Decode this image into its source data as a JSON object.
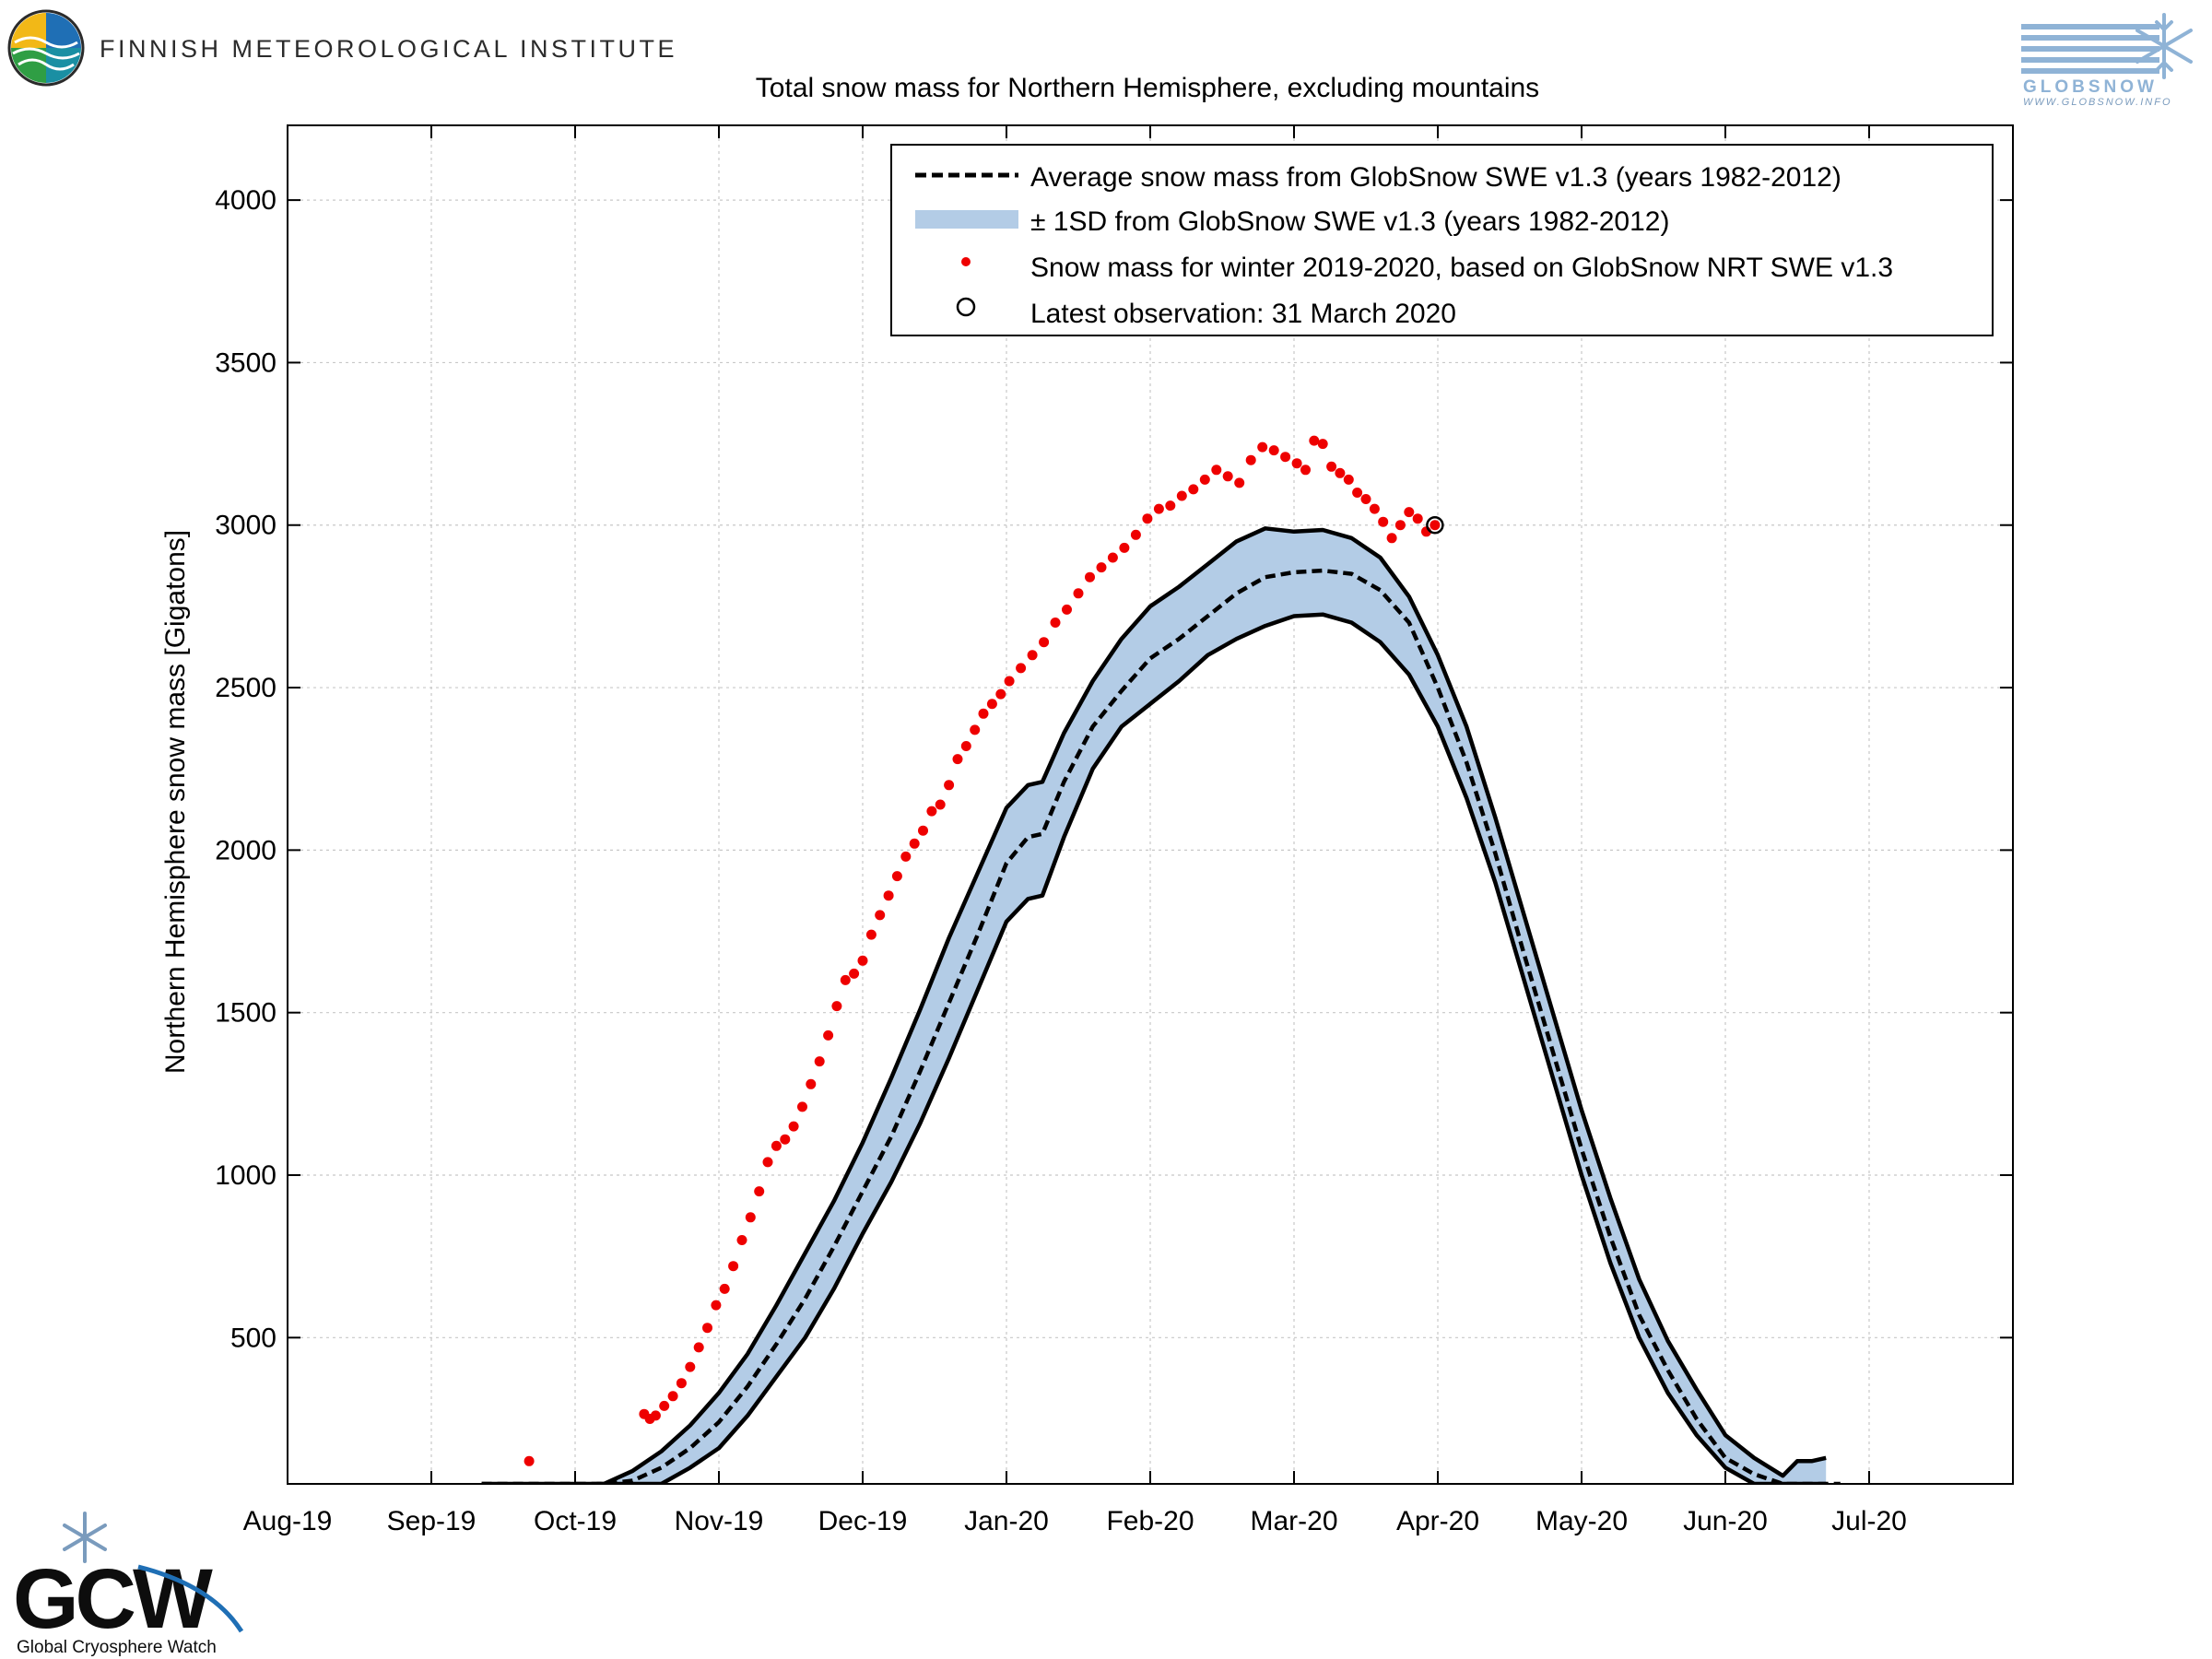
{
  "header": {
    "institute_name": "FINNISH METEOROLOGICAL INSTITUTE",
    "globsnow_wordmark": "GLOBSNOW",
    "globsnow_url": "WWW.GLOBSNOW.INFO",
    "gcw_wordmark": "GCW",
    "gcw_caption": "Global Cryosphere Watch"
  },
  "colors": {
    "band_fill": "#b3cce6",
    "band_edge": "#000000",
    "points": "#ee0000",
    "mean_line": "#000000",
    "fmi_blue": "#1f6fb5",
    "fmi_yellow": "#f2b817",
    "fmi_green": "#2f9e44",
    "globsnow_blue": "#8fb3d6"
  },
  "chart_data": {
    "type": "line",
    "title": "Total snow mass for Northern Hemisphere, excluding mountains",
    "xlabel": "",
    "ylabel": "Northern Hemisphere snow mass [Gigatons]",
    "x_unit": "month (0 = 1 Aug 2019)",
    "xlim": [
      0,
      12
    ],
    "ylim": [
      50,
      4230
    ],
    "x_ticks": [
      {
        "x": 0,
        "label": "Aug-19"
      },
      {
        "x": 1,
        "label": "Sep-19"
      },
      {
        "x": 2,
        "label": "Oct-19"
      },
      {
        "x": 3,
        "label": "Nov-19"
      },
      {
        "x": 4,
        "label": "Dec-19"
      },
      {
        "x": 5,
        "label": "Jan-20"
      },
      {
        "x": 6,
        "label": "Feb-20"
      },
      {
        "x": 7,
        "label": "Mar-20"
      },
      {
        "x": 8,
        "label": "Apr-20"
      },
      {
        "x": 9,
        "label": "May-20"
      },
      {
        "x": 10,
        "label": "Jun-20"
      },
      {
        "x": 11,
        "label": "Jul-20"
      }
    ],
    "y_ticks": [
      500,
      1000,
      1500,
      2000,
      2500,
      3000,
      3500,
      4000
    ],
    "grid": true,
    "legend_position": "top-right",
    "legend": [
      {
        "kind": "dashed-line",
        "label": "Average snow mass from GlobSnow SWE v1.3 (years 1982-2012)"
      },
      {
        "kind": "band",
        "label": "± 1SD from GlobSnow SWE v1.3 (years 1982-2012)"
      },
      {
        "kind": "dot",
        "label": "Snow mass for winter 2019-2020, based on GlobSnow NRT SWE v1.3"
      },
      {
        "kind": "circle",
        "label": "Latest observation: 31 March 2020"
      }
    ],
    "series": [
      {
        "kind": "mean",
        "x": [
          1.35,
          1.6,
          1.8,
          2.0,
          2.2,
          2.4,
          2.6,
          2.8,
          3.0,
          3.2,
          3.4,
          3.6,
          3.8,
          4.0,
          4.2,
          4.4,
          4.6,
          4.8,
          5.0,
          5.15,
          5.25,
          5.4,
          5.6,
          5.8,
          6.0,
          6.2,
          6.4,
          6.6,
          6.8,
          7.0,
          7.2,
          7.4,
          7.6,
          7.8,
          8.0,
          8.2,
          8.4,
          8.6,
          8.8,
          9.0,
          9.2,
          9.4,
          9.6,
          9.8,
          10.0,
          10.2,
          10.4,
          10.6,
          10.7,
          10.8
        ],
        "y": [
          0,
          0,
          0,
          5,
          25,
          60,
          100,
          160,
          240,
          350,
          480,
          620,
          780,
          950,
          1120,
          1320,
          1530,
          1740,
          1960,
          2040,
          2050,
          2210,
          2380,
          2490,
          2590,
          2650,
          2720,
          2790,
          2840,
          2855,
          2860,
          2850,
          2800,
          2700,
          2500,
          2270,
          1990,
          1680,
          1380,
          1080,
          810,
          570,
          400,
          250,
          130,
          80,
          40,
          40,
          25,
          10
        ]
      },
      {
        "kind": "band_upper",
        "x": [
          1.35,
          1.6,
          1.8,
          2.0,
          2.2,
          2.4,
          2.6,
          2.8,
          3.0,
          3.2,
          3.4,
          3.6,
          3.8,
          4.0,
          4.2,
          4.4,
          4.6,
          4.8,
          5.0,
          5.15,
          5.25,
          5.4,
          5.6,
          5.8,
          6.0,
          6.2,
          6.4,
          6.6,
          6.8,
          7.0,
          7.2,
          7.4,
          7.6,
          7.8,
          8.0,
          8.2,
          8.4,
          8.6,
          8.8,
          9.0,
          9.2,
          9.4,
          9.6,
          9.8,
          10.0,
          10.2,
          10.4,
          10.5,
          10.6,
          10.7
        ],
        "y": [
          0,
          5,
          10,
          25,
          50,
          90,
          150,
          230,
          330,
          450,
          600,
          760,
          920,
          1100,
          1300,
          1510,
          1730,
          1930,
          2130,
          2200,
          2210,
          2360,
          2520,
          2650,
          2750,
          2810,
          2880,
          2950,
          2990,
          2980,
          2985,
          2960,
          2900,
          2780,
          2600,
          2380,
          2100,
          1800,
          1500,
          1200,
          930,
          680,
          490,
          340,
          200,
          130,
          75,
          120,
          120,
          130
        ]
      },
      {
        "kind": "band_lower",
        "x": [
          2.15,
          2.4,
          2.6,
          2.8,
          3.0,
          3.2,
          3.4,
          3.6,
          3.8,
          4.0,
          4.2,
          4.4,
          4.6,
          4.8,
          5.0,
          5.15,
          5.25,
          5.4,
          5.6,
          5.8,
          6.0,
          6.2,
          6.4,
          6.6,
          6.8,
          7.0,
          7.2,
          7.4,
          7.6,
          7.8,
          8.0,
          8.2,
          8.4,
          8.6,
          8.8,
          9.0,
          9.2,
          9.4,
          9.6,
          9.8,
          10.0,
          10.2,
          10.4,
          10.6,
          10.7
        ],
        "y": [
          0,
          20,
          50,
          100,
          160,
          260,
          380,
          500,
          650,
          820,
          980,
          1160,
          1360,
          1570,
          1780,
          1850,
          1860,
          2040,
          2250,
          2380,
          2450,
          2520,
          2600,
          2650,
          2690,
          2720,
          2725,
          2700,
          2640,
          2540,
          2380,
          2160,
          1900,
          1600,
          1300,
          1000,
          730,
          500,
          330,
          200,
          100,
          40,
          10,
          0,
          0
        ]
      },
      {
        "kind": "observed",
        "name": "",
        "x": [
          1.4,
          1.68,
          2.48,
          2.52,
          2.56,
          2.62,
          2.68,
          2.74,
          2.8,
          2.86,
          2.92,
          2.98,
          3.04,
          3.1,
          3.16,
          3.22,
          3.28,
          3.34,
          3.4,
          3.46,
          3.52,
          3.58,
          3.64,
          3.7,
          3.76,
          3.82,
          3.88,
          3.94,
          4.0,
          4.06,
          4.12,
          4.18,
          4.24,
          4.3,
          4.36,
          4.42,
          4.48,
          4.54,
          4.6,
          4.66,
          4.72,
          4.78,
          4.84,
          4.9,
          4.96,
          5.02,
          5.1,
          5.18,
          5.26,
          5.34,
          5.42,
          5.5,
          5.58,
          5.66,
          5.74,
          5.82,
          5.9,
          5.98,
          6.06,
          6.14,
          6.22,
          6.3,
          6.38,
          6.46,
          6.54,
          6.62,
          6.7,
          6.78,
          6.86,
          6.94,
          7.02,
          7.08,
          7.14,
          7.2,
          7.26,
          7.32,
          7.38,
          7.44,
          7.5,
          7.56,
          7.62,
          7.68,
          7.74,
          7.8,
          7.86,
          7.92,
          7.98
        ],
        "y": [
          0,
          120,
          265,
          250,
          260,
          290,
          320,
          360,
          410,
          470,
          530,
          600,
          650,
          720,
          800,
          870,
          950,
          1040,
          1090,
          1110,
          1150,
          1210,
          1280,
          1350,
          1430,
          1520,
          1600,
          1620,
          1660,
          1740,
          1800,
          1860,
          1920,
          1980,
          2020,
          2060,
          2120,
          2140,
          2200,
          2280,
          2320,
          2370,
          2420,
          2450,
          2480,
          2520,
          2560,
          2600,
          2640,
          2700,
          2740,
          2790,
          2840,
          2870,
          2900,
          2930,
          2970,
          3020,
          3050,
          3060,
          3090,
          3110,
          3140,
          3170,
          3150,
          3130,
          3200,
          3240,
          3230,
          3210,
          3190,
          3170,
          3260,
          3250,
          3180,
          3160,
          3140,
          3100,
          3080,
          3050,
          3010,
          2960,
          3000,
          3040,
          3020,
          2980,
          3000
        ]
      }
    ],
    "latest_observation": {
      "x": 7.98,
      "y": 3000
    }
  }
}
